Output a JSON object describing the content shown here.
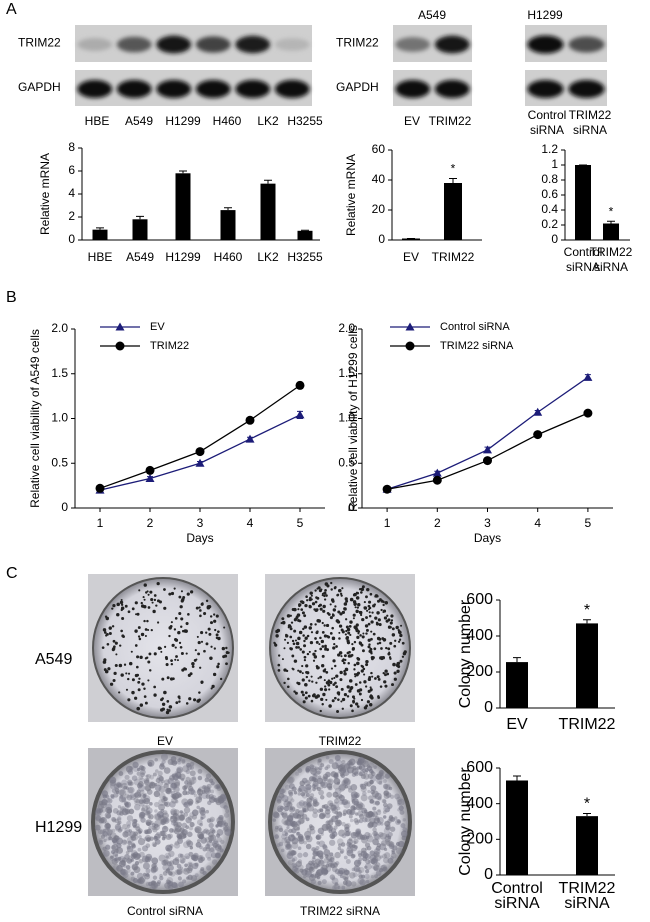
{
  "panels": [
    "A",
    "B",
    "C"
  ],
  "blots": [
    {
      "rows": [
        "TRIM22",
        "GAPDH"
      ],
      "lanes": [
        "HBE",
        "A549",
        "H1299",
        "H460",
        "LK2",
        "H3255"
      ]
    },
    {
      "title": "A549",
      "rows": [
        "TRIM22",
        "GAPDH"
      ],
      "lanes": [
        "EV",
        "TRIM22"
      ]
    },
    {
      "title": "H1299",
      "lanes": [
        "Control siRNA",
        "TRIM22 siRNA"
      ]
    }
  ],
  "colony": {
    "rows": [
      "A549",
      "H1299"
    ],
    "captions": [
      [
        "EV",
        "TRIM22"
      ],
      [
        "Control siRNA",
        "TRIM22 siRNA"
      ]
    ]
  },
  "chart_data": [
    {
      "type": "bar",
      "ylabel": "Relative mRNA",
      "categories": [
        "HBE",
        "A549",
        "H1299",
        "H460",
        "LK2",
        "H3255"
      ],
      "values": [
        0.9,
        1.8,
        5.8,
        2.6,
        4.9,
        0.8
      ],
      "errors": [
        0.15,
        0.25,
        0.2,
        0.2,
        0.3,
        0.05
      ],
      "color": "#000000",
      "ylim": [
        0,
        8
      ],
      "yticks": [
        0,
        2,
        4,
        6,
        8
      ]
    },
    {
      "type": "bar",
      "ylabel": "Relative mRNA",
      "categories": [
        "EV",
        "TRIM22"
      ],
      "values": [
        1,
        38
      ],
      "errors": [
        0,
        3
      ],
      "color": "#000000",
      "annotation": "*",
      "ylim": [
        0,
        60
      ],
      "yticks": [
        0,
        20,
        40,
        60
      ]
    },
    {
      "type": "bar",
      "categories": [
        "Control siRNA",
        "TRIM22 siRNA"
      ],
      "values": [
        1,
        0.22
      ],
      "errors": [
        0,
        0.03
      ],
      "color": "#000000",
      "annotation": "*",
      "ylim": [
        0,
        1.2
      ],
      "yticks": [
        0,
        0.2,
        0.4,
        0.6,
        0.8,
        1,
        1.2
      ]
    },
    {
      "type": "line",
      "xlabel": "Days",
      "ylabel": "Relative cell viability of A549 cells",
      "x": [
        1,
        2,
        3,
        4,
        5
      ],
      "xlim": [
        0.5,
        5.5
      ],
      "xticks": [
        1,
        2,
        3,
        4,
        5
      ],
      "ylim": [
        0,
        2
      ],
      "yticks": [
        0,
        0.5,
        {
          "value": 1,
          "label": "1.0"
        },
        1.5,
        {
          "value": 2,
          "label": "2.0"
        }
      ],
      "series": [
        {
          "name": "EV",
          "color": "#1c1c78",
          "marker": "triangle",
          "values": [
            0.2,
            0.33,
            0.5,
            0.77,
            1.04
          ],
          "errors": [
            0.01,
            0.02,
            0.02,
            0.02,
            0.04
          ]
        },
        {
          "name": "TRIM22",
          "color": "#000000",
          "marker": "circle",
          "values": [
            0.22,
            0.42,
            0.63,
            0.98,
            1.37
          ],
          "errors": [
            0.01,
            0.02,
            0.02,
            0.02,
            0.03
          ]
        }
      ]
    },
    {
      "type": "line",
      "xlabel": "Days",
      "ylabel": "Relative cell viability of H1299 cells",
      "x": [
        1,
        2,
        3,
        4,
        5
      ],
      "xlim": [
        0.5,
        5.5
      ],
      "xticks": [
        1,
        2,
        3,
        4,
        5
      ],
      "ylim": [
        0,
        2
      ],
      "yticks": [
        0,
        0.5,
        {
          "value": 1,
          "label": "1.0"
        },
        1.5,
        {
          "value": 2,
          "label": "2.0"
        }
      ],
      "series": [
        {
          "name": "Control siRNA",
          "color": "#1c1c78",
          "marker": "triangle",
          "values": [
            0.21,
            0.39,
            0.65,
            1.07,
            1.46
          ],
          "errors": [
            0.01,
            0.02,
            0.03,
            0.02,
            0.03
          ]
        },
        {
          "name": "TRIM22 siRNA",
          "color": "#000000",
          "marker": "circle",
          "values": [
            0.21,
            0.31,
            0.53,
            0.82,
            1.06
          ],
          "errors": [
            0.01,
            0.02,
            0.02,
            0.02,
            0.02
          ]
        }
      ]
    },
    {
      "type": "bar",
      "ylabel": "Colony number",
      "categories": [
        "EV",
        "TRIM22"
      ],
      "values": [
        255,
        470
      ],
      "errors": [
        25,
        20
      ],
      "color": "#000000",
      "annotation": "*",
      "ylim": [
        0,
        600
      ],
      "yticks": [
        0,
        200,
        400,
        600
      ]
    },
    {
      "type": "bar",
      "ylabel": "Colony number",
      "categories": [
        "Control siRNA",
        "TRIM22 siRNA"
      ],
      "values": [
        530,
        330
      ],
      "errors": [
        25,
        15
      ],
      "color": "#000000",
      "annotation": "*",
      "ylim": [
        0,
        600
      ],
      "yticks": [
        0,
        200,
        400,
        600
      ]
    }
  ]
}
